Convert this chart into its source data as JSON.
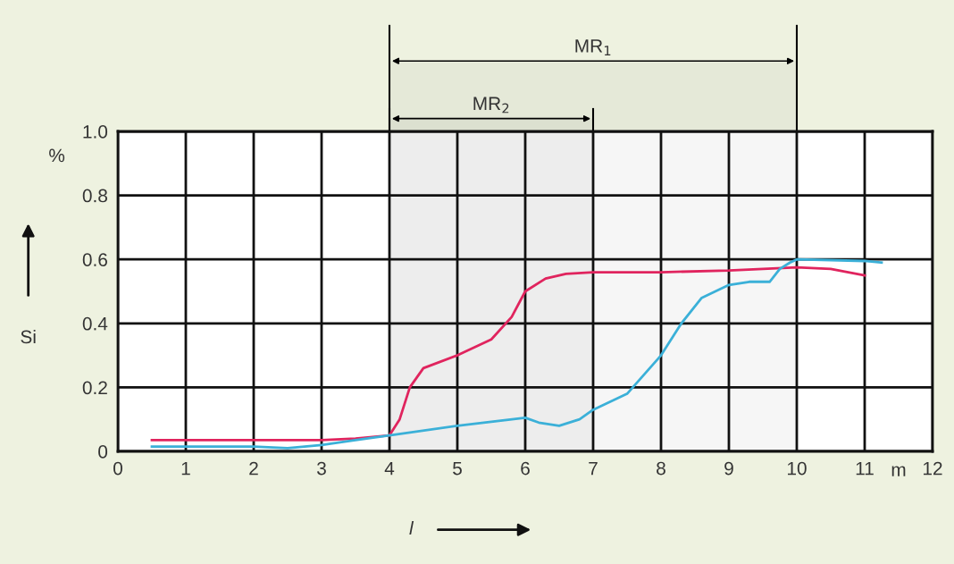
{
  "chart_data": {
    "type": "line",
    "xlabel": "l",
    "ylabel": "Si",
    "xlim": [
      0,
      12
    ],
    "xticks": [
      0,
      1,
      2,
      3,
      4,
      5,
      6,
      7,
      8,
      9,
      10,
      11,
      12
    ],
    "ylim": [
      0,
      1.0
    ],
    "yticks": [
      {
        "value": 0,
        "label": "0"
      },
      0.2,
      0.4,
      0.6,
      0.8,
      {
        "value": 1.0,
        "label": "1.0"
      }
    ],
    "grid": true,
    "legend": false,
    "marker": "none",
    "line_style": "solid",
    "annotations": [
      "%",
      "m"
    ],
    "bands": [
      {
        "axis": "x",
        "from": 4,
        "to": 10,
        "label": "MR$_{1}$",
        "color": "#000000"
      },
      {
        "axis": "x",
        "from": 4,
        "to": 7,
        "label": "MR$_{2}$",
        "color": "#000000"
      }
    ],
    "series": [
      {
        "color": "#e0245e",
        "x": [
          0.5,
          2,
          3,
          3.5,
          4,
          4.15,
          4.3,
          4.5,
          5,
          5.5,
          5.8,
          6,
          6.3,
          6.6,
          7,
          8,
          9,
          10,
          10.5,
          11
        ],
        "values": [
          0.035,
          0.035,
          0.035,
          0.04,
          0.05,
          0.1,
          0.2,
          0.26,
          0.3,
          0.35,
          0.42,
          0.5,
          0.54,
          0.555,
          0.56,
          0.56,
          0.565,
          0.575,
          0.57,
          0.55
        ]
      },
      {
        "color": "#3bb0d8",
        "x": [
          0.5,
          2,
          2.5,
          3,
          3.5,
          4,
          5,
          6,
          6.2,
          6.5,
          6.8,
          7,
          7.5,
          8,
          8.3,
          8.6,
          9,
          9.3,
          9.6,
          9.75,
          9.9,
          10,
          11,
          11.25
        ],
        "values": [
          0.015,
          0.015,
          0.01,
          0.02,
          0.035,
          0.05,
          0.08,
          0.105,
          0.09,
          0.08,
          0.1,
          0.13,
          0.18,
          0.3,
          0.4,
          0.48,
          0.52,
          0.53,
          0.53,
          0.57,
          0.59,
          0.6,
          0.595,
          0.59
        ]
      }
    ]
  }
}
